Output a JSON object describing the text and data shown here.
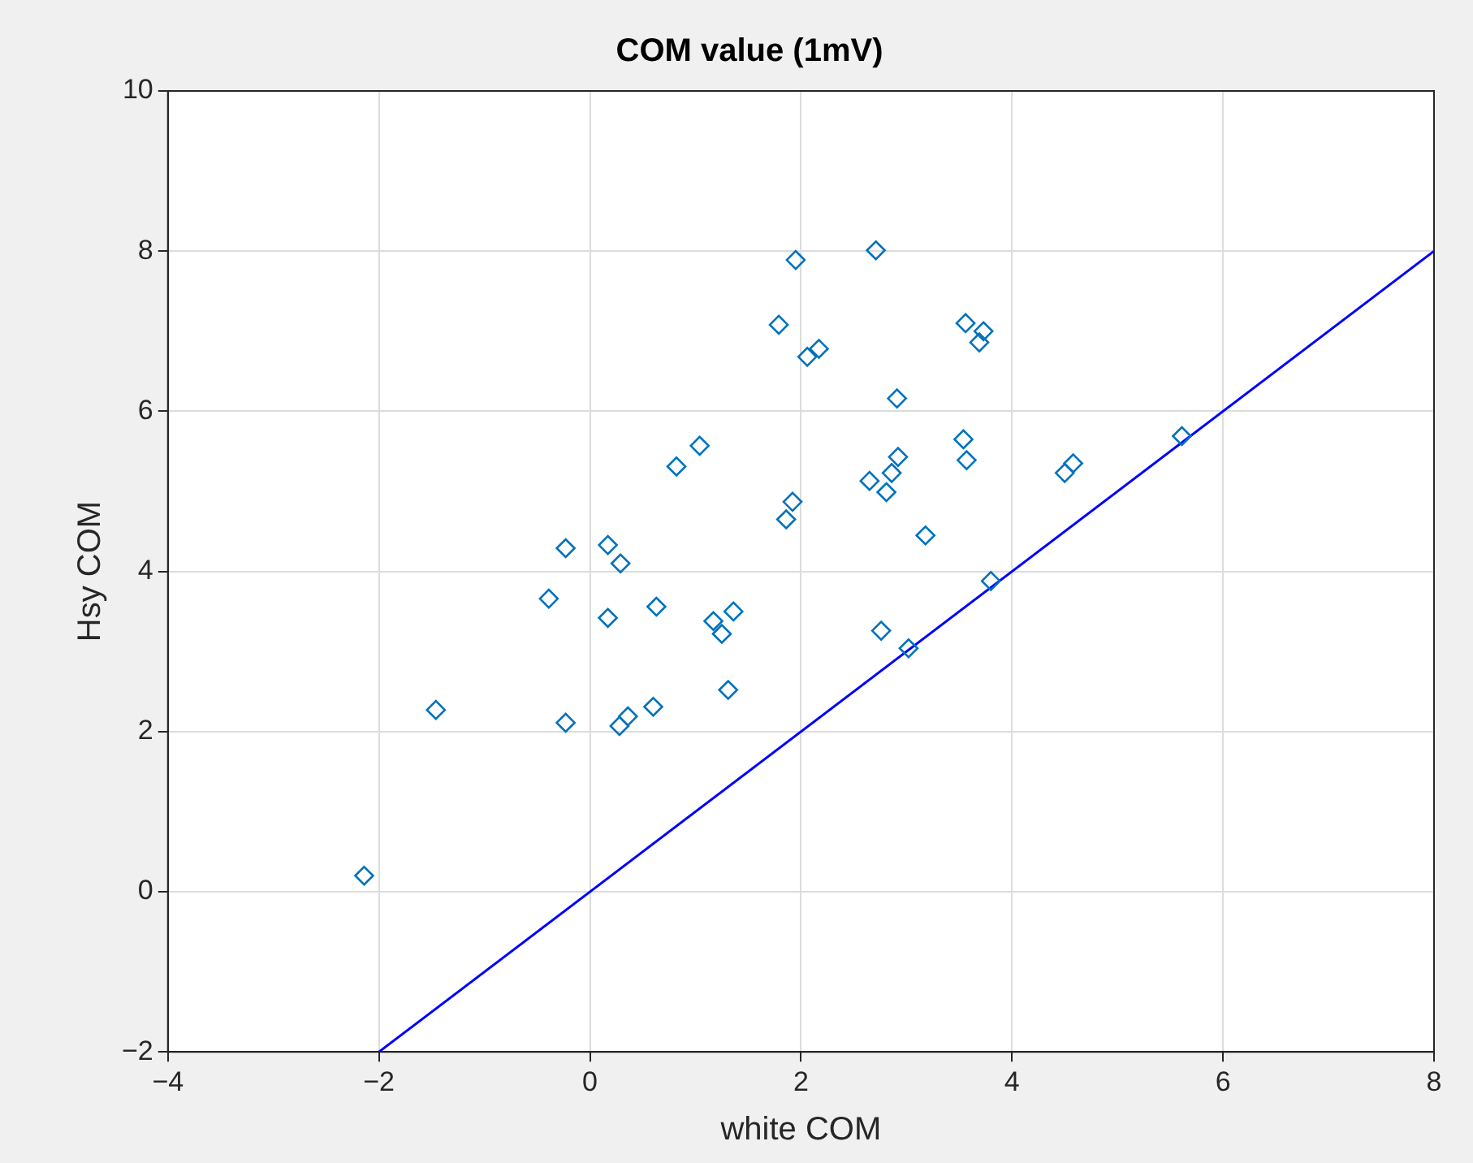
{
  "chart_data": {
    "type": "scatter",
    "title": "COM value (1mV)",
    "xlabel": "white COM",
    "ylabel": "Hsy COM",
    "xlim": [
      -4,
      8
    ],
    "xticks": [
      -4,
      -2,
      0,
      2,
      4,
      6,
      8
    ],
    "ylim": [
      -2,
      10
    ],
    "yticks": [
      -2,
      0,
      2,
      4,
      6,
      8,
      10
    ],
    "grid": true,
    "legend": false,
    "marker": "diamond",
    "series": [
      {
        "color": "#0072bd",
        "x": [
          -2.14,
          -1.46,
          -0.23,
          -0.39,
          -0.23,
          0.17,
          0.29,
          0.17,
          0.28,
          0.36,
          0.63,
          0.6,
          0.82,
          1.04,
          1.17,
          1.25,
          1.36,
          1.31,
          1.79,
          1.95,
          1.92,
          1.86,
          2.06,
          2.17,
          2.71,
          2.65,
          2.81,
          2.86,
          2.92,
          2.91,
          2.76,
          3.02,
          3.18,
          3.56,
          3.73,
          3.69,
          3.54,
          3.57,
          3.8,
          4.5,
          4.58,
          5.61
        ],
        "values": [
          0.2,
          2.27,
          4.29,
          3.66,
          2.11,
          4.33,
          4.1,
          3.42,
          2.07,
          2.19,
          3.56,
          2.31,
          5.31,
          5.57,
          3.38,
          3.22,
          3.5,
          2.52,
          7.08,
          7.89,
          4.87,
          4.65,
          6.68,
          6.78,
          8.01,
          5.13,
          4.99,
          5.23,
          5.43,
          6.16,
          3.26,
          3.04,
          4.45,
          7.1,
          7.0,
          6.86,
          5.65,
          5.39,
          3.88,
          5.23,
          5.35,
          5.69
        ]
      },
      {
        "type": "line",
        "color": "#0000ff",
        "marker": "none",
        "line_style": "solid",
        "x": [
          -2,
          8
        ],
        "values": [
          -2,
          8
        ]
      }
    ]
  }
}
